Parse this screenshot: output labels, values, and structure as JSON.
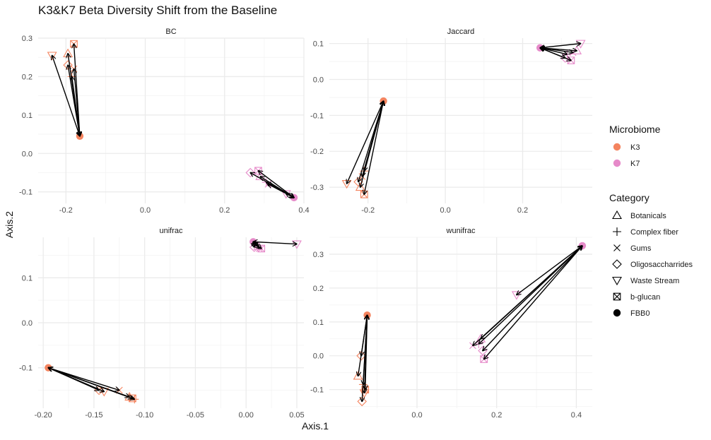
{
  "title": "K3&K7 Beta Diversity Shift from the Baseline",
  "xlabel": "Axis.1",
  "ylabel": "Axis.2",
  "colors": {
    "K3": "#F4845F",
    "K7": "#E68AC9",
    "arrow": "#000000",
    "grid": "#EBEBEB"
  },
  "legend": {
    "microbiome_title": "Microbiome",
    "microbiome": [
      {
        "label": "K3",
        "color": "#F4845F"
      },
      {
        "label": "K7",
        "color": "#E68AC9"
      }
    ],
    "category_title": "Category",
    "category": [
      {
        "label": "Botanicals",
        "shape": "triangle-up"
      },
      {
        "label": "Complex fiber",
        "shape": "plus"
      },
      {
        "label": "Gums",
        "shape": "cross"
      },
      {
        "label": "Oligosaccharrides",
        "shape": "diamond"
      },
      {
        "label": "Waste Stream",
        "shape": "triangle-down"
      },
      {
        "label": "b-glucan",
        "shape": "square-cross"
      },
      {
        "label": "FBB0",
        "shape": "filled-circle"
      }
    ]
  },
  "chart_data": [
    {
      "type": "scatter",
      "title": "BC",
      "xlim": [
        -0.27,
        0.4
      ],
      "ylim": [
        -0.13,
        0.3
      ],
      "xticks": [
        {
          "v": -0.2,
          "label": "-0.2"
        },
        {
          "v": 0.0,
          "label": "0.0"
        },
        {
          "v": 0.2,
          "label": "0.2"
        },
        {
          "v": 0.4,
          "label": "0.4"
        }
      ],
      "yticks": [
        {
          "v": -0.1,
          "label": "-0.1"
        },
        {
          "v": 0.0,
          "label": "0.0"
        },
        {
          "v": 0.1,
          "label": "0.1"
        },
        {
          "v": 0.2,
          "label": "0.2"
        },
        {
          "v": 0.3,
          "label": "0.3"
        }
      ],
      "baselines": [
        {
          "microbiome": "K3",
          "x": -0.165,
          "y": 0.045
        },
        {
          "microbiome": "K7",
          "x": 0.375,
          "y": -0.115
        }
      ],
      "points": [
        {
          "microbiome": "K3",
          "category": "Waste Stream",
          "x": -0.235,
          "y": 0.255
        },
        {
          "microbiome": "K3",
          "category": "b-glucan",
          "x": -0.18,
          "y": 0.285
        },
        {
          "microbiome": "K3",
          "category": "Botanicals",
          "x": -0.195,
          "y": 0.26
        },
        {
          "microbiome": "K3",
          "category": "Oligosaccharrides",
          "x": -0.195,
          "y": 0.23
        },
        {
          "microbiome": "K3",
          "category": "Complex fiber",
          "x": -0.185,
          "y": 0.2
        },
        {
          "microbiome": "K3",
          "category": "Gums",
          "x": -0.18,
          "y": 0.22
        },
        {
          "microbiome": "K7",
          "category": "Oligosaccharrides",
          "x": 0.265,
          "y": -0.05
        },
        {
          "microbiome": "K7",
          "category": "b-glucan",
          "x": 0.285,
          "y": -0.045
        },
        {
          "microbiome": "K7",
          "category": "Botanicals",
          "x": 0.29,
          "y": -0.06
        },
        {
          "microbiome": "K7",
          "category": "Complex fiber",
          "x": 0.305,
          "y": -0.075
        },
        {
          "microbiome": "K7",
          "category": "Gums",
          "x": 0.31,
          "y": -0.08
        },
        {
          "microbiome": "K7",
          "category": "Waste Stream",
          "x": 0.355,
          "y": -0.105
        }
      ]
    },
    {
      "type": "scatter",
      "title": "Jaccard",
      "xlim": [
        -0.3,
        0.38
      ],
      "ylim": [
        -0.345,
        0.115
      ],
      "xticks": [
        {
          "v": -0.2,
          "label": "-0.2"
        },
        {
          "v": 0.0,
          "label": "0.0"
        },
        {
          "v": 0.2,
          "label": "0.2"
        }
      ],
      "yticks": [
        {
          "v": -0.3,
          "label": "-0.3"
        },
        {
          "v": -0.2,
          "label": "-0.2"
        },
        {
          "v": -0.1,
          "label": "-0.1"
        },
        {
          "v": 0.0,
          "label": "0.0"
        },
        {
          "v": 0.1,
          "label": "0.1"
        }
      ],
      "baselines": [
        {
          "microbiome": "K3",
          "x": -0.16,
          "y": -0.06
        },
        {
          "microbiome": "K7",
          "x": 0.245,
          "y": 0.088
        }
      ],
      "points": [
        {
          "microbiome": "K3",
          "category": "Waste Stream",
          "x": -0.255,
          "y": -0.29
        },
        {
          "microbiome": "K3",
          "category": "Oligosaccharrides",
          "x": -0.225,
          "y": -0.285
        },
        {
          "microbiome": "K3",
          "category": "Botanicals",
          "x": -0.22,
          "y": -0.3
        },
        {
          "microbiome": "K3",
          "category": "Complex fiber",
          "x": -0.21,
          "y": -0.255
        },
        {
          "microbiome": "K3",
          "category": "Gums",
          "x": -0.215,
          "y": -0.27
        },
        {
          "microbiome": "K3",
          "category": "b-glucan",
          "x": -0.21,
          "y": -0.32
        },
        {
          "microbiome": "K7",
          "category": "Waste Stream",
          "x": 0.35,
          "y": 0.1
        },
        {
          "microbiome": "K7",
          "category": "Botanicals",
          "x": 0.34,
          "y": 0.08
        },
        {
          "microbiome": "K7",
          "category": "Gums",
          "x": 0.33,
          "y": 0.075
        },
        {
          "microbiome": "K7",
          "category": "Complex fiber",
          "x": 0.315,
          "y": 0.07
        },
        {
          "microbiome": "K7",
          "category": "Oligosaccharrides",
          "x": 0.31,
          "y": 0.06
        },
        {
          "microbiome": "K7",
          "category": "b-glucan",
          "x": 0.325,
          "y": 0.053
        }
      ]
    },
    {
      "type": "scatter",
      "title": "unifrac",
      "xlim": [
        -0.205,
        0.057
      ],
      "ylim": [
        -0.19,
        0.19
      ],
      "xticks": [
        {
          "v": -0.2,
          "label": "-0.20"
        },
        {
          "v": -0.15,
          "label": "-0.15"
        },
        {
          "v": -0.1,
          "label": "-0.10"
        },
        {
          "v": -0.05,
          "label": "-0.05"
        },
        {
          "v": 0.0,
          "label": "0.00"
        },
        {
          "v": 0.05,
          "label": "0.05"
        }
      ],
      "yticks": [
        {
          "v": -0.1,
          "label": "-0.1"
        },
        {
          "v": 0.0,
          "label": "0.0"
        },
        {
          "v": 0.1,
          "label": "0.1"
        }
      ],
      "baselines": [
        {
          "microbiome": "K3",
          "x": -0.195,
          "y": -0.1
        },
        {
          "microbiome": "K7",
          "x": 0.007,
          "y": 0.18
        }
      ],
      "points": [
        {
          "microbiome": "K3",
          "category": "Gums",
          "x": -0.125,
          "y": -0.15
        },
        {
          "microbiome": "K3",
          "category": "Oligosaccharrides",
          "x": -0.145,
          "y": -0.15
        },
        {
          "microbiome": "K3",
          "category": "Waste Stream",
          "x": -0.14,
          "y": -0.153
        },
        {
          "microbiome": "K3",
          "category": "b-glucan",
          "x": -0.112,
          "y": -0.168
        },
        {
          "microbiome": "K3",
          "category": "Botanicals",
          "x": -0.115,
          "y": -0.165
        },
        {
          "microbiome": "K3",
          "category": "Complex fiber",
          "x": -0.11,
          "y": -0.17
        },
        {
          "microbiome": "K7",
          "category": "Waste Stream",
          "x": 0.05,
          "y": 0.175
        },
        {
          "microbiome": "K7",
          "category": "Botanicals",
          "x": 0.012,
          "y": 0.17
        },
        {
          "microbiome": "K7",
          "category": "Oligosaccharrides",
          "x": 0.008,
          "y": 0.168
        },
        {
          "microbiome": "K7",
          "category": "Gums",
          "x": 0.013,
          "y": 0.165
        },
        {
          "microbiome": "K7",
          "category": "b-glucan",
          "x": 0.015,
          "y": 0.165
        },
        {
          "microbiome": "K7",
          "category": "Complex fiber",
          "x": 0.01,
          "y": 0.172
        }
      ]
    },
    {
      "type": "scatter",
      "title": "wunifrac",
      "xlim": [
        -0.22,
        0.44
      ],
      "ylim": [
        -0.155,
        0.35
      ],
      "xticks": [
        {
          "v": 0.0,
          "label": "0.0"
        },
        {
          "v": 0.2,
          "label": "0.2"
        },
        {
          "v": 0.4,
          "label": "0.4"
        }
      ],
      "yticks": [
        {
          "v": -0.1,
          "label": "-0.1"
        },
        {
          "v": 0.0,
          "label": "0.0"
        },
        {
          "v": 0.1,
          "label": "0.1"
        },
        {
          "v": 0.2,
          "label": "0.2"
        },
        {
          "v": 0.3,
          "label": "0.3"
        }
      ],
      "baselines": [
        {
          "microbiome": "K3",
          "x": -0.125,
          "y": 0.12
        },
        {
          "microbiome": "K7",
          "x": 0.415,
          "y": 0.325
        }
      ],
      "points": [
        {
          "microbiome": "K3",
          "category": "Oligosaccharrides",
          "x": -0.14,
          "y": 0.0
        },
        {
          "microbiome": "K3",
          "category": "Botanicals",
          "x": -0.148,
          "y": -0.06
        },
        {
          "microbiome": "K3",
          "category": "Complex fiber",
          "x": -0.135,
          "y": -0.085
        },
        {
          "microbiome": "K3",
          "category": "b-glucan",
          "x": -0.13,
          "y": -0.1
        },
        {
          "microbiome": "K3",
          "category": "Waste Stream",
          "x": -0.132,
          "y": -0.11
        },
        {
          "microbiome": "K3",
          "category": "Oligosaccharrides",
          "x": -0.138,
          "y": -0.135
        },
        {
          "microbiome": "K7",
          "category": "Waste Stream",
          "x": 0.25,
          "y": 0.18
        },
        {
          "microbiome": "K7",
          "category": "Botanicals",
          "x": 0.16,
          "y": 0.05
        },
        {
          "microbiome": "K7",
          "category": "Gums",
          "x": 0.14,
          "y": 0.03
        },
        {
          "microbiome": "K7",
          "category": "Complex fiber",
          "x": 0.155,
          "y": 0.035
        },
        {
          "microbiome": "K7",
          "category": "Oligosaccharrides",
          "x": 0.165,
          "y": 0.015
        },
        {
          "microbiome": "K7",
          "category": "b-glucan",
          "x": 0.168,
          "y": -0.01
        }
      ]
    }
  ]
}
